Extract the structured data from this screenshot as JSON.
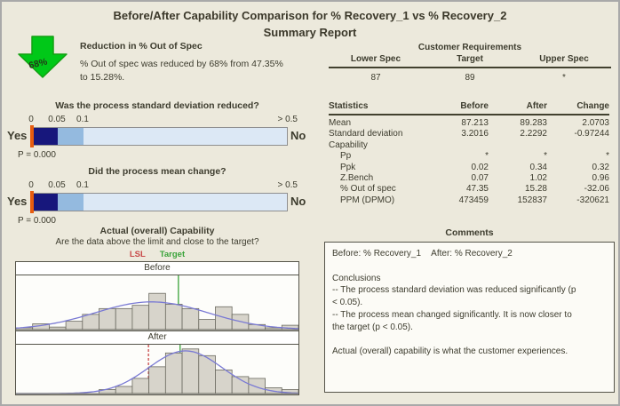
{
  "title": {
    "line1": "Before/After Capability Comparison for % Recovery_1 vs % Recovery_2",
    "line2": "Summary Report"
  },
  "reduction": {
    "arrow_value": "68%",
    "heading": "Reduction in % Out of Spec",
    "body": "% Out of spec was reduced by 68% from 47.35%\nto 15.28%."
  },
  "gauges": [
    {
      "question": "Was the process standard deviation reduced?",
      "ticks": [
        "0",
        "0.05",
        "0.1",
        "> 0.5"
      ],
      "yes_label": "Yes",
      "no_label": "No",
      "p_label": "P = 0.000"
    },
    {
      "question": "Did the process mean change?",
      "ticks": [
        "0",
        "0.05",
        "0.1",
        "> 0.5"
      ],
      "yes_label": "Yes",
      "no_label": "No",
      "p_label": "P = 0.000"
    }
  ],
  "customer_requirements": {
    "title": "Customer Requirements",
    "columns": [
      "Lower Spec",
      "Target",
      "Upper Spec"
    ],
    "values": [
      "87",
      "89",
      "*"
    ]
  },
  "statistics": {
    "columns": [
      "Statistics",
      "Before",
      "After",
      "Change"
    ],
    "rows": [
      {
        "label": "Mean",
        "before": "87.213",
        "after": "89.283",
        "change": "2.0703",
        "indent": false
      },
      {
        "label": "Standard deviation",
        "before": "3.2016",
        "after": "2.2292",
        "change": "-0.97244",
        "indent": false
      },
      {
        "label": "Capability",
        "before": "",
        "after": "",
        "change": "",
        "indent": false
      },
      {
        "label": "Pp",
        "before": "*",
        "after": "*",
        "change": "*",
        "indent": true
      },
      {
        "label": "Ppk",
        "before": "0.02",
        "after": "0.34",
        "change": "0.32",
        "indent": true
      },
      {
        "label": "Z.Bench",
        "before": "0.07",
        "after": "1.02",
        "change": "0.96",
        "indent": true
      },
      {
        "label": "% Out of spec",
        "before": "47.35",
        "after": "15.28",
        "change": "-32.06",
        "indent": true
      },
      {
        "label": "PPM (DPMO)",
        "before": "473459",
        "after": "152837",
        "change": "-320621",
        "indent": true
      }
    ]
  },
  "capability_section": {
    "title": "Actual (overall) Capability",
    "subtitle": "Are the data above the limit and close to the target?",
    "legend": {
      "lsl": "LSL",
      "target": "Target"
    }
  },
  "comments": {
    "title": "Comments",
    "body": "Before: % Recovery_1    After: % Recovery_2\n\nConclusions\n-- The process standard deviation was reduced significantly (p\n< 0.05).\n-- The process mean changed significantly. It is now closer to\nthe target (p < 0.05).\n\nActual (overall) capability is what the customer experiences."
  },
  "chart_data": [
    {
      "type": "bar",
      "name": "before-capability-histogram",
      "panel": "Before",
      "bin_rel_heights": [
        0.05,
        0.16,
        0.07,
        0.23,
        0.42,
        0.58,
        0.58,
        0.67,
        1.0,
        0.7,
        0.58,
        0.28,
        0.63,
        0.42,
        0.14,
        0.05,
        0.12
      ],
      "bar_height_frac": 0.68,
      "curve": {
        "center": 0.48,
        "sigma": 0.2,
        "amp": 0.52
      },
      "ref_lines": [
        {
          "label": "Target",
          "rel_x": 0.575,
          "style": "solid",
          "color": "#3aa33a"
        }
      ],
      "bar_fill": "#d7d4cb",
      "bar_stroke": "#6b6a60",
      "curve_color": "#7a7ad4"
    },
    {
      "type": "bar",
      "name": "after-capability-histogram",
      "panel": "After",
      "bin_rel_heights": [
        0,
        0,
        0,
        0,
        0,
        0.09,
        0.16,
        0.34,
        0.6,
        0.91,
        1.0,
        0.85,
        0.53,
        0.38,
        0.34,
        0.13,
        0.09
      ],
      "bar_height_frac": 0.93,
      "curve": {
        "center": 0.6,
        "sigma": 0.13,
        "amp": 0.89
      },
      "ref_lines": [
        {
          "label": "LSL",
          "rel_x": 0.469,
          "style": "dashed",
          "color": "#c84848"
        },
        {
          "label": "Target",
          "rel_x": 0.581,
          "style": "solid",
          "color": "#3aa33a"
        }
      ],
      "bar_fill": "#d7d4cb",
      "bar_stroke": "#6b6a60",
      "curve_color": "#7a7ad4"
    }
  ],
  "colors": {
    "background": "#ece9dc",
    "text": "#3d3c2e",
    "arrow_green": "#00c818",
    "gauge_significant": "#17177c",
    "gauge_mid": "#94badf",
    "gauge_rest": "#dce8f5",
    "p_marker_orange": "#e75c0f",
    "lsl_red": "#c84848",
    "target_green": "#3aa33a"
  }
}
